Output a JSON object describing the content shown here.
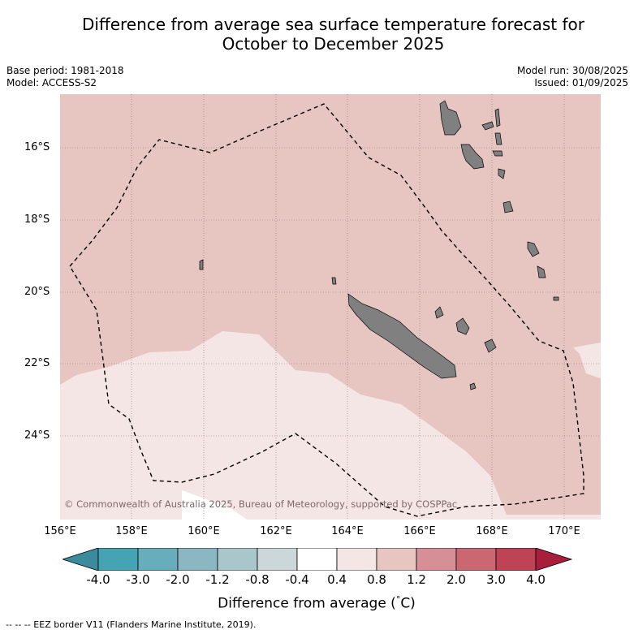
{
  "header": {
    "title_line1": "Difference from average sea surface temperature forecast for",
    "title_line2": "October to December 2025"
  },
  "meta": {
    "base_period": "Base period: 1981-2018",
    "model": "Model: ACCESS-S2",
    "model_run": "Model run: 30/08/2025",
    "issued": "Issued: 01/09/2025"
  },
  "map": {
    "region": "New Caledonia and Vanuatu, south-west Pacific",
    "lat_range": [
      "15°S",
      "26°S"
    ],
    "lon_range": [
      "156°E",
      "171°E"
    ],
    "lat_labels": [
      "16°S",
      "18°S",
      "20°S",
      "22°S",
      "24°S"
    ],
    "lon_labels": [
      "156°E",
      "158°E",
      "160°E",
      "162°E",
      "164°E",
      "166°E",
      "168°E",
      "170°E"
    ],
    "land_color": "#808080",
    "anomaly_zones": [
      {
        "range": "0.8 to 1.2",
        "color": "#e7c6c1",
        "area": "northern and eastern waters"
      },
      {
        "range": "0.4 to 0.8",
        "color": "#f4e6e5",
        "area": "south-western waters"
      }
    ],
    "copyright": "© Commonwealth of Australia 2025, Bureau of Meteorology, supported by COSPPac"
  },
  "colorbar": {
    "ticks": [
      "-4.0",
      "-3.0",
      "-2.0",
      "-1.2",
      "-0.8",
      "-0.4",
      "0.4",
      "0.8",
      "1.2",
      "2.0",
      "3.0",
      "4.0"
    ],
    "colors": [
      "#3b8b9c",
      "#46a3b3",
      "#67adbb",
      "#8bb7c3",
      "#a9c7cb",
      "#cbd7d9",
      "#ffffff",
      "#f4e6e5",
      "#e7c6c1",
      "#d68f96",
      "#ca6771",
      "#bd4355",
      "#a81f3b"
    ],
    "label": "Difference from average (",
    "label_symbol": "°",
    "label_unit": "C)"
  },
  "footnote": "--  --  -- EEZ border V11 (Flanders Marine Institute, 2019)."
}
